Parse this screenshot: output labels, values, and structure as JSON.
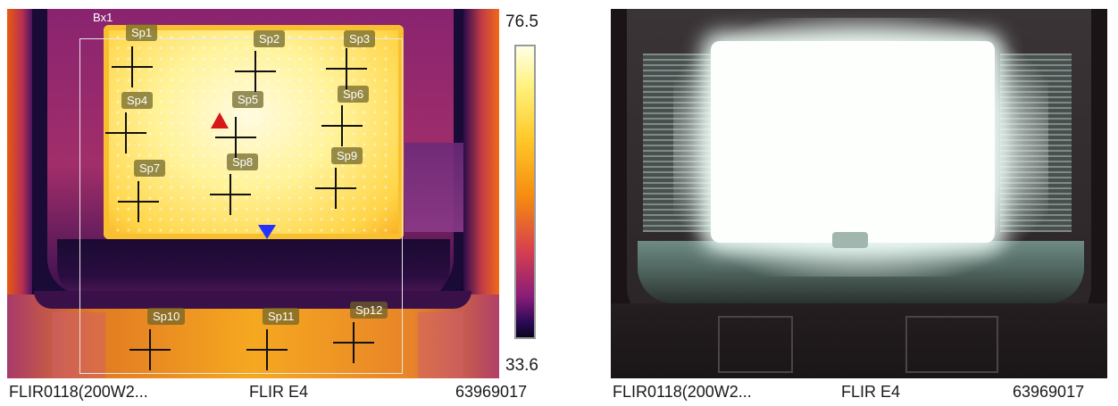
{
  "thermal_image": {
    "box_label": "Bx1",
    "spots": [
      {
        "label": "Sp1"
      },
      {
        "label": "Sp2"
      },
      {
        "label": "Sp3"
      },
      {
        "label": "Sp4"
      },
      {
        "label": "Sp5"
      },
      {
        "label": "Sp6"
      },
      {
        "label": "Sp7"
      },
      {
        "label": "Sp8"
      },
      {
        "label": "Sp9"
      },
      {
        "label": "Sp10"
      },
      {
        "label": "Sp11"
      },
      {
        "label": "Sp12"
      }
    ],
    "markers": {
      "hot": "red-triangle-icon",
      "cold": "blue-triangle-icon"
    },
    "scale": {
      "max": "76.5",
      "min": "33.6",
      "palette": "iron"
    }
  },
  "captions": {
    "thermal": {
      "file": "FLIR0118(200W2...",
      "camera": "FLIR E4",
      "serial": "63969017"
    },
    "visual": {
      "file": "FLIR0118(200W2...",
      "camera": "FLIR E4",
      "serial": "63969017"
    }
  },
  "colors": {
    "hot_marker": "#d81818",
    "cold_marker": "#2430ff",
    "box_outline": "#e8e8e8"
  }
}
